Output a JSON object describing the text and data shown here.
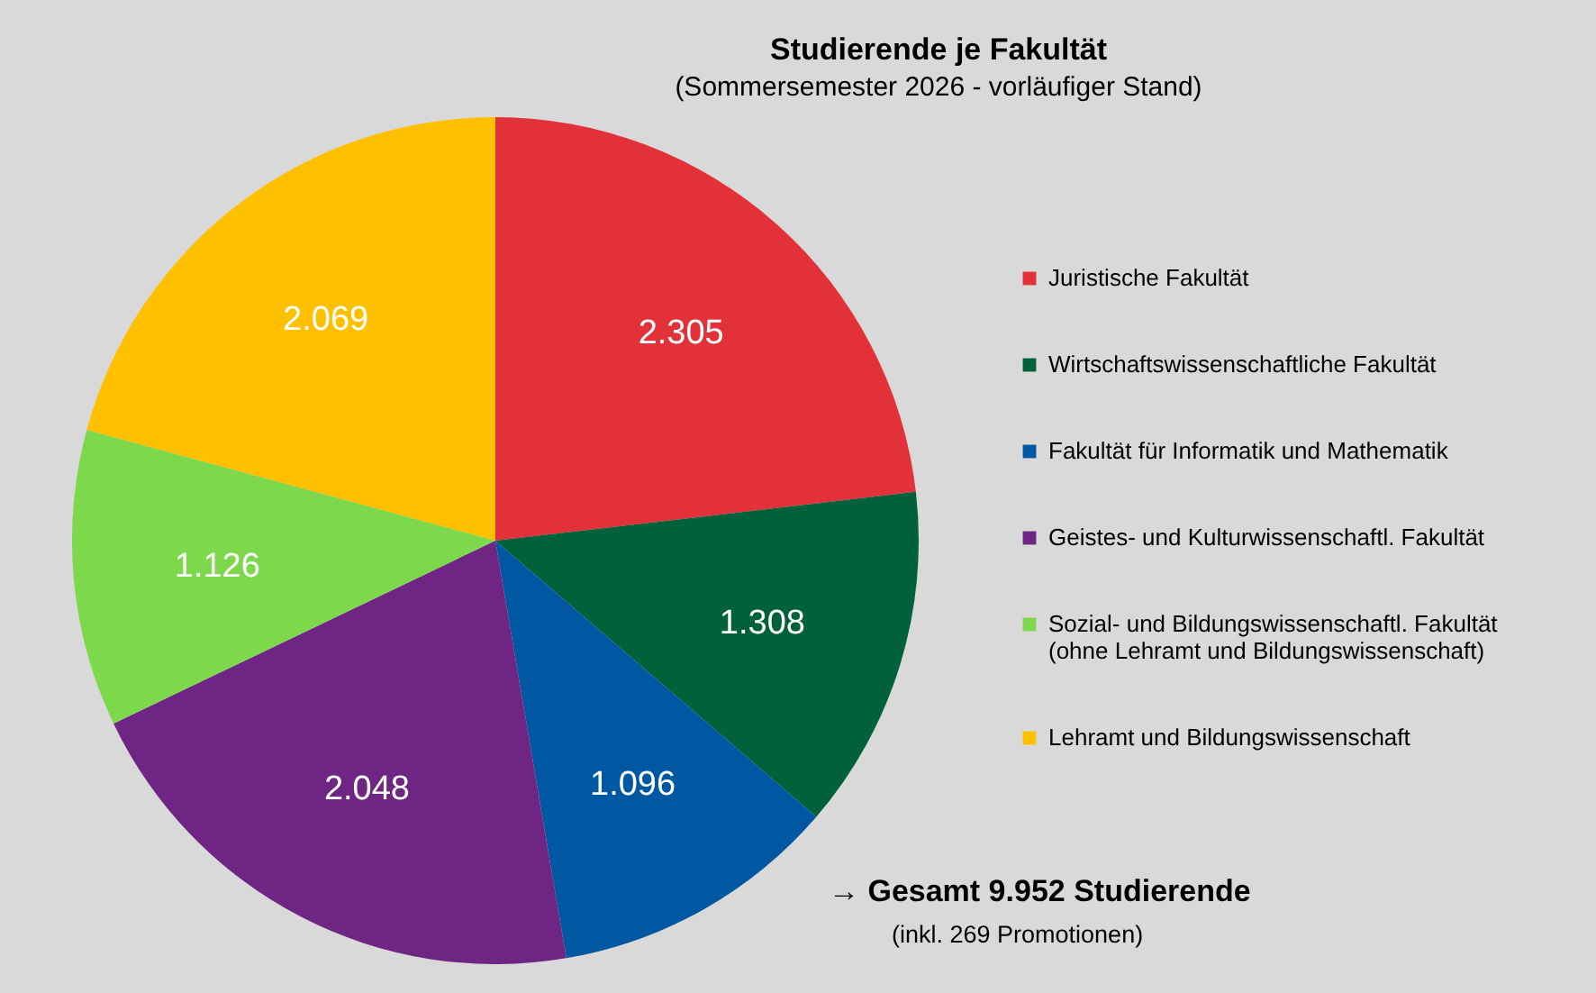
{
  "chart_data": {
    "type": "pie",
    "title": "Studierende je Fakultät",
    "subtitle": "(Sommersemester 2026 - vorläufiger Stand)",
    "categories": [
      "Juristische Fakultät",
      "Wirtschaftswissenschaftliche Fakultät",
      "Fakultät für Informatik und Mathematik",
      "Geistes- und Kulturwissenschaftl. Fakultät",
      "Sozial- und Bildungswissenschaftl. Fakultät\n(ohne Lehramt und Bildungswissenschaft)",
      "Lehramt und Bildungswissenschaft"
    ],
    "values": [
      2305,
      1308,
      1096,
      2048,
      1126,
      2069
    ],
    "colors": [
      "#e3313a",
      "#00613a",
      "#0058a3",
      "#6f2583",
      "#7ed84c",
      "#ffc000"
    ],
    "value_labels": [
      "2.305",
      "1.308",
      "1.096",
      "2.048",
      "1.126",
      "2.069"
    ],
    "legend": "right",
    "annotations": [
      "→ Gesamt 9.952 Studierende",
      "(inkl. 269 Promotionen)"
    ]
  }
}
